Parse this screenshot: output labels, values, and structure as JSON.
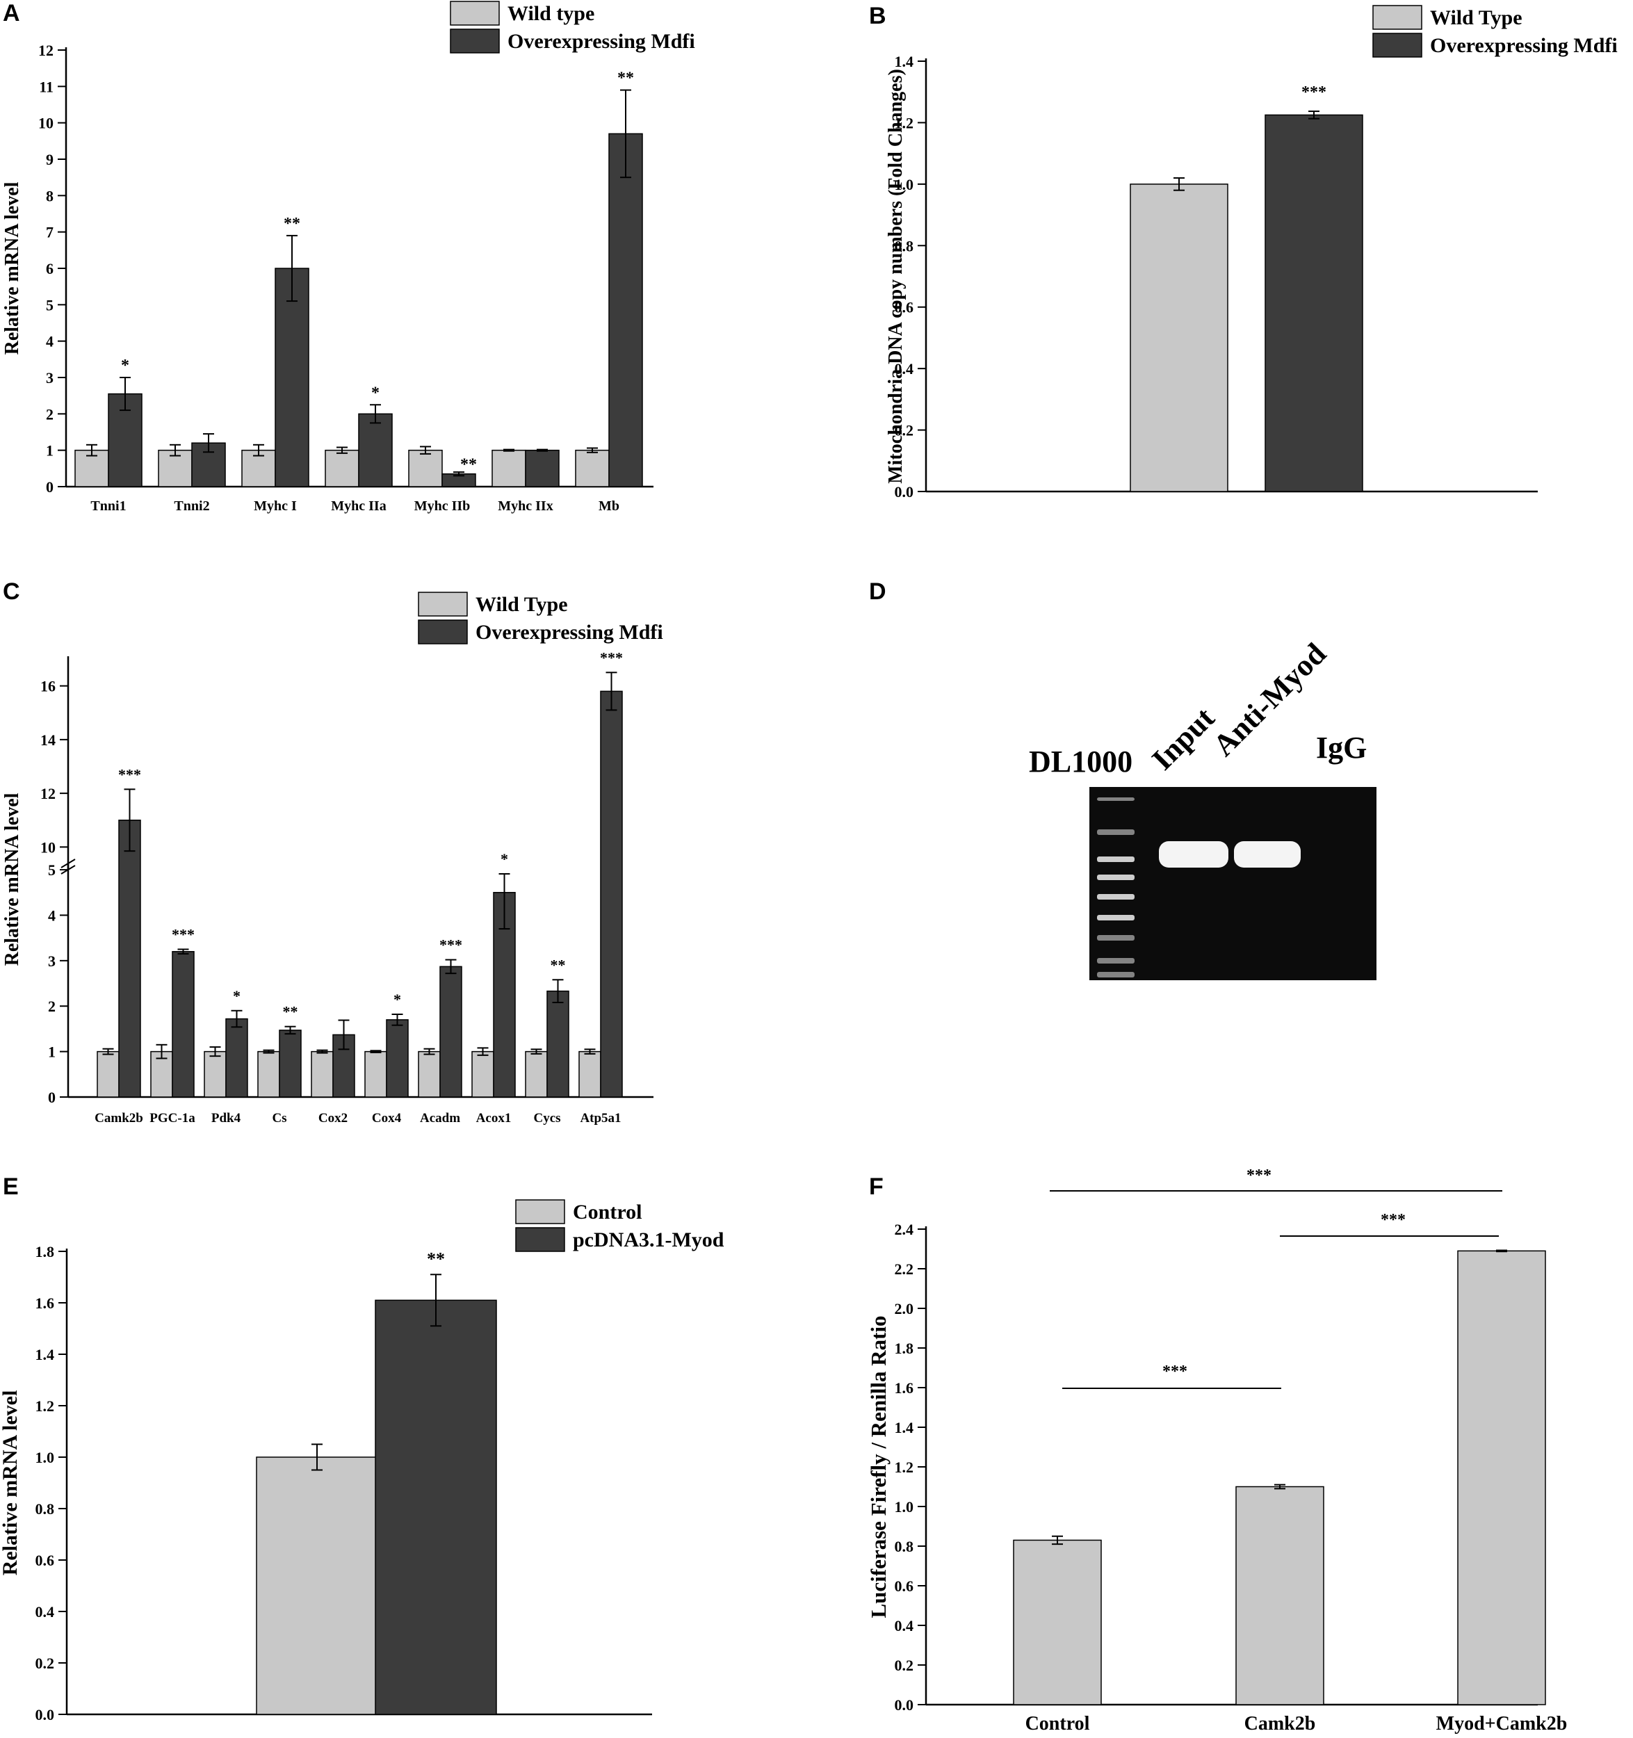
{
  "colors": {
    "wild": "#c8c8c8",
    "mdfi": "#3c3c3c",
    "axis": "#000000",
    "gel_bg": "#0c0c0c",
    "band": "#f4f4f4"
  },
  "panels": {
    "A": {
      "letter": "A",
      "chart_data": {
        "type": "bar",
        "title": "",
        "xlabel": "",
        "ylabel": "Relative mRNA level",
        "ylim": [
          0,
          12
        ],
        "yticks": [
          0,
          1,
          2,
          3,
          4,
          5,
          6,
          7,
          8,
          9,
          10,
          11,
          12
        ],
        "categories": [
          "Tnni1",
          "Tnni2",
          "Myhc I",
          "Myhc IIa",
          "Myhc IIb",
          "Myhc IIx",
          "Mb"
        ],
        "series": [
          {
            "name": "Wild type",
            "values": [
              1.0,
              1.0,
              1.0,
              1.0,
              1.0,
              1.0,
              1.0
            ],
            "errors": [
              0.15,
              0.15,
              0.15,
              0.08,
              0.1,
              0.02,
              0.06
            ]
          },
          {
            "name": "Overexpressing Mdfi",
            "values": [
              2.55,
              1.2,
              6.0,
              2.0,
              0.35,
              1.0,
              9.7
            ],
            "errors": [
              0.45,
              0.25,
              0.9,
              0.25,
              0.05,
              0.02,
              1.2
            ]
          }
        ],
        "significance": [
          "*",
          "",
          "**",
          "*",
          "**",
          "",
          "**"
        ],
        "legend": [
          "Wild type",
          "Overexpressing Mdfi"
        ],
        "legend_position": "top-right"
      }
    },
    "B": {
      "letter": "B",
      "chart_data": {
        "type": "bar",
        "ylabel": "Mitochondria DNA copy numbers (Fold Changes)",
        "ylim": [
          0,
          1.4
        ],
        "yticks": [
          "0.0",
          "0.2",
          "0.4",
          "0.6",
          "0.8",
          "1.0",
          "1.2",
          "1.4"
        ],
        "categories": [
          ""
        ],
        "series": [
          {
            "name": "Wild Type",
            "values": [
              1.0
            ],
            "errors": [
              0.02
            ]
          },
          {
            "name": "Overexpressing Mdfi",
            "values": [
              1.225
            ],
            "errors": [
              0.012
            ]
          }
        ],
        "significance": [
          "***"
        ],
        "legend": [
          "Wild Type",
          "Overexpressing Mdfi"
        ],
        "legend_position": "top-right"
      }
    },
    "C": {
      "letter": "C",
      "chart_data": {
        "type": "bar",
        "ylabel": "Relative mRNA level",
        "axis_break": [
          5.2,
          9.0
        ],
        "ylim_lower": [
          0,
          5.2
        ],
        "ylim_upper": [
          9,
          17
        ],
        "yticks_lower": [
          0,
          1,
          2,
          3,
          4,
          5
        ],
        "yticks_upper": [
          10,
          12,
          14,
          16
        ],
        "categories": [
          "Camk2b",
          "PGC-1a",
          "Pdk4",
          "Cs",
          "Cox2",
          "Cox4",
          "Acadm",
          "Acox1",
          "Cycs",
          "Atp5a1"
        ],
        "series": [
          {
            "name": "Wild Type",
            "values": [
              1.0,
              1.0,
              1.0,
              1.0,
              1.0,
              1.0,
              1.0,
              1.0,
              1.0,
              1.0
            ],
            "errors": [
              0.06,
              0.15,
              0.1,
              0.03,
              0.03,
              0.02,
              0.06,
              0.08,
              0.05,
              0.05
            ]
          },
          {
            "name": "Overexpressing Mdfi",
            "values": [
              11.0,
              3.2,
              1.72,
              1.47,
              1.37,
              1.7,
              2.87,
              4.5,
              2.33,
              15.8
            ],
            "errors": [
              1.15,
              0.05,
              0.18,
              0.08,
              0.32,
              0.12,
              0.15,
              0.8,
              0.25,
              0.7
            ]
          }
        ],
        "significance": [
          "***",
          "***",
          "*",
          "**",
          "",
          "*",
          "***",
          "*",
          "**",
          "***"
        ],
        "legend": [
          "Wild Type",
          "Overexpressing Mdfi"
        ],
        "legend_position": "top-right"
      }
    },
    "D": {
      "letter": "D",
      "gel": {
        "marker_label": "DL1000",
        "lane_labels": [
          "Input",
          "Anti-Myod",
          "IgG"
        ]
      }
    },
    "E": {
      "letter": "E",
      "chart_data": {
        "type": "bar",
        "ylabel": "Relative mRNA level",
        "ylim": [
          0,
          1.8
        ],
        "yticks": [
          "0.0",
          "0.2",
          "0.4",
          "0.6",
          "0.8",
          "1.0",
          "1.2",
          "1.4",
          "1.6",
          "1.8"
        ],
        "categories": [
          ""
        ],
        "series": [
          {
            "name": "Control",
            "values": [
              1.0
            ],
            "errors": [
              0.05
            ]
          },
          {
            "name": "pcDNA3.1-Myod",
            "values": [
              1.61
            ],
            "errors": [
              0.1
            ]
          }
        ],
        "significance": [
          "**"
        ],
        "legend": [
          "Control",
          "pcDNA3.1-Myod"
        ],
        "legend_position": "top-right"
      }
    },
    "F": {
      "letter": "F",
      "chart_data": {
        "type": "bar",
        "ylabel": "Luciferase Firefly / Renilla Ratio",
        "ylim": [
          0,
          2.4
        ],
        "yticks": [
          "0.0",
          "0.2",
          "0.4",
          "0.6",
          "0.8",
          "1.0",
          "1.2",
          "1.4",
          "1.6",
          "1.8",
          "2.0",
          "2.2",
          "2.4"
        ],
        "categories": [
          "Control",
          "Camk2b",
          "Myod+Camk2b"
        ],
        "values": [
          0.83,
          1.1,
          2.29
        ],
        "errors": [
          0.02,
          0.01,
          0.003
        ],
        "comparisons": [
          {
            "from": 0,
            "to": 1,
            "label": "***"
          },
          {
            "from": 1,
            "to": 2,
            "label": "***"
          },
          {
            "from": 0,
            "to": 2,
            "label": "***"
          }
        ]
      }
    }
  }
}
